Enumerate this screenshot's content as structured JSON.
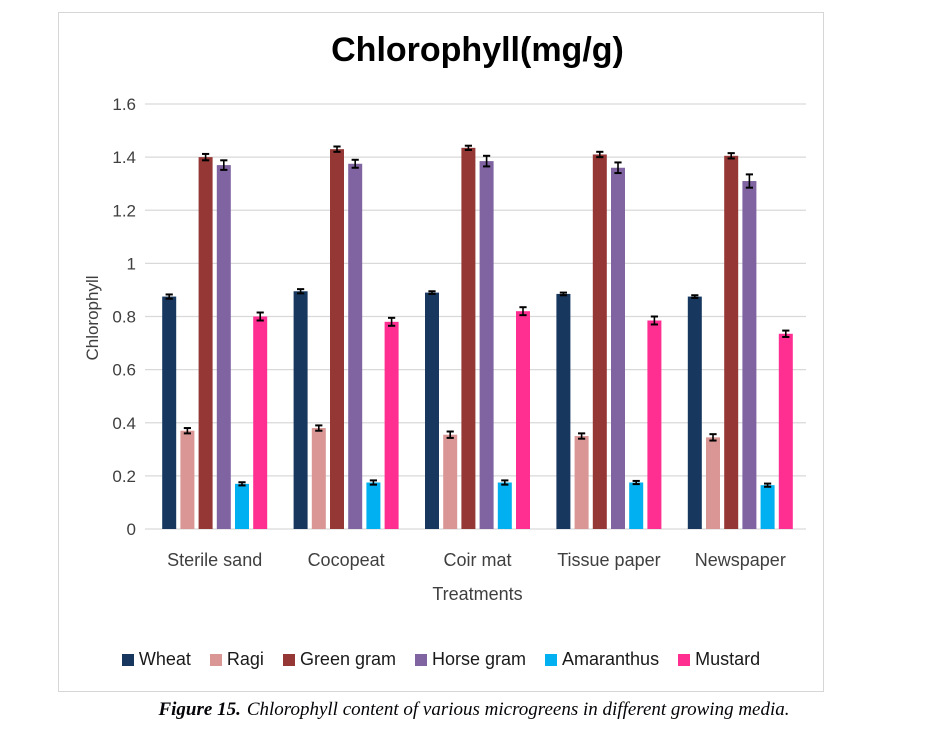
{
  "chart_data": {
    "type": "bar",
    "title": "Chlorophyll(mg/g)",
    "xlabel": "Treatments",
    "ylabel": "Chlorophyll",
    "categories": [
      "Sterile sand",
      "Cocopeat",
      "Coir mat",
      "Tissue paper",
      "Newspaper"
    ],
    "series": [
      {
        "name": "Wheat",
        "color": "#17375e",
        "values": [
          0.875,
          0.895,
          0.89,
          0.885,
          0.875
        ],
        "errors": [
          0.008,
          0.008,
          0.005,
          0.005,
          0.005
        ]
      },
      {
        "name": "Ragi",
        "color": "#d99694",
        "values": [
          0.37,
          0.38,
          0.355,
          0.35,
          0.345
        ],
        "errors": [
          0.01,
          0.01,
          0.012,
          0.01,
          0.012
        ]
      },
      {
        "name": "Green gram",
        "color": "#953735",
        "values": [
          1.4,
          1.43,
          1.435,
          1.41,
          1.405
        ],
        "errors": [
          0.012,
          0.01,
          0.008,
          0.01,
          0.01
        ]
      },
      {
        "name": "Horse gram",
        "color": "#8064a2",
        "values": [
          1.37,
          1.375,
          1.385,
          1.36,
          1.31
        ],
        "errors": [
          0.018,
          0.015,
          0.02,
          0.02,
          0.025
        ]
      },
      {
        "name": "Amaranthus",
        "color": "#00b0f0",
        "values": [
          0.17,
          0.175,
          0.175,
          0.175,
          0.165
        ],
        "errors": [
          0.006,
          0.008,
          0.008,
          0.006,
          0.006
        ]
      },
      {
        "name": "Mustard",
        "color": "#ff2f92",
        "values": [
          0.8,
          0.78,
          0.82,
          0.785,
          0.735
        ],
        "errors": [
          0.015,
          0.015,
          0.015,
          0.015,
          0.012
        ]
      }
    ],
    "ylim": [
      0,
      1.6
    ],
    "ytick_step": 0.2,
    "ytick_labels": [
      "0",
      "0.2",
      "0.4",
      "0.6",
      "0.8",
      "1",
      "1.2",
      "1.4",
      "1.6"
    ],
    "grid": true,
    "legend_position": "bottom",
    "error_bars": true
  },
  "caption": {
    "label": "Figure 15.",
    "text": "Chlorophyll content of various microgreens in different growing media."
  },
  "colors": {
    "gridline": "#d9d9d9",
    "chart_border": "#d6d6d6",
    "axis_text": "#3f3f3f",
    "error_bar": "#000000"
  }
}
